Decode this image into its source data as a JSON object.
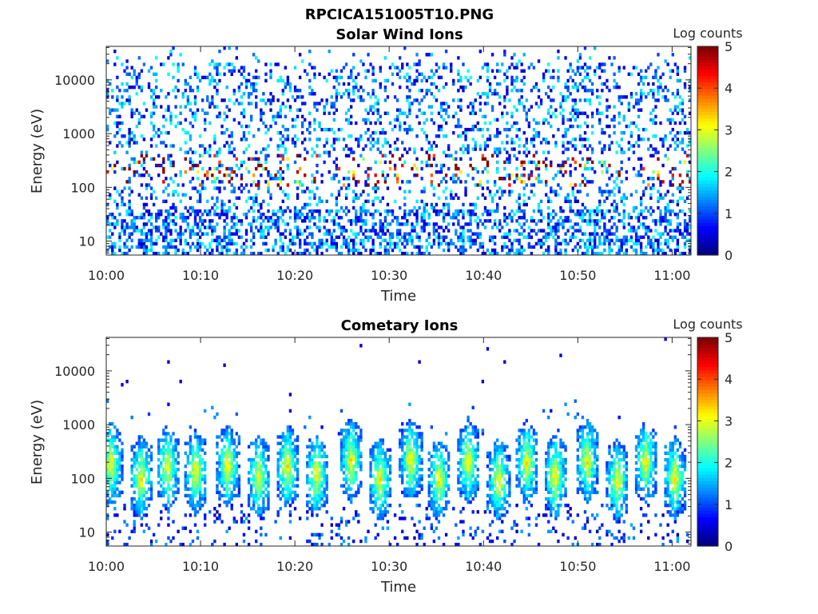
{
  "figure_title": "RPCICA151005T10.PNG",
  "colors": {
    "jet_low": "#00008f",
    "jet_high": "#800000",
    "axis": "#262626"
  },
  "chart_data": [
    {
      "type": "heatmap",
      "title": "Solar Wind Ions",
      "xlabel": "Time",
      "ylabel": "Energy (eV)",
      "x_ticks": [
        "10:00",
        "10:10",
        "10:20",
        "10:30",
        "10:40",
        "10:50",
        "11:00"
      ],
      "y_ticks": [
        "10",
        "100",
        "1000",
        "10000"
      ],
      "y_scale": "log",
      "ylim": [
        5.5,
        42000
      ],
      "xlim_minutes": [
        0,
        62
      ],
      "colorbar": {
        "label": "Log counts",
        "ticks": [
          "0",
          "1",
          "2",
          "3",
          "4",
          "5"
        ],
        "range": [
          0,
          5
        ],
        "colormap": "jet"
      },
      "grid": false
    },
    {
      "type": "heatmap",
      "title": "Cometary Ions",
      "xlabel": "Time",
      "ylabel": "Energy (eV)",
      "x_ticks": [
        "10:00",
        "10:10",
        "10:20",
        "10:30",
        "10:40",
        "10:50",
        "11:00"
      ],
      "y_ticks": [
        "10",
        "100",
        "1000",
        "10000"
      ],
      "y_scale": "log",
      "ylim": [
        5.5,
        42000
      ],
      "xlim_minutes": [
        0,
        62
      ],
      "colorbar": {
        "label": "Log counts",
        "ticks": [
          "0",
          "1",
          "2",
          "3",
          "4",
          "5"
        ],
        "range": [
          0,
          5
        ],
        "colormap": "jet"
      },
      "grid": false
    }
  ]
}
